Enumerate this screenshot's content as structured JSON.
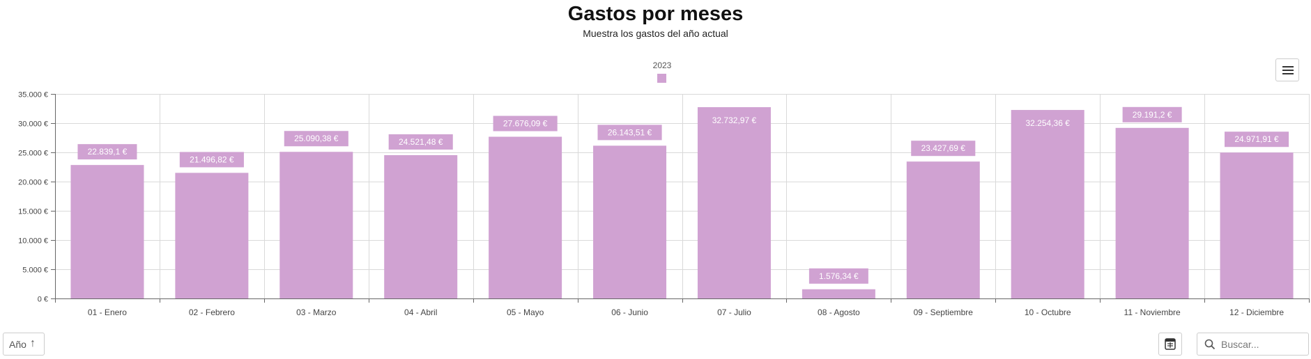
{
  "header": {
    "title": "Gastos por meses",
    "subtitle": "Muestra los gastos del año actual"
  },
  "toolbar": {
    "sort_label": "Año",
    "sort_arrow": "↑",
    "search_placeholder": "Buscar...",
    "menu_icon": "hamburger-menu-icon",
    "export_icon": "export-excel-icon",
    "search_icon": "search-icon"
  },
  "colors": {
    "bar": "#d0a2d2",
    "grid": "#d9d9d9",
    "axis": "#666666"
  },
  "chart_data": {
    "type": "bar",
    "title": "Gastos por meses",
    "subtitle": "Muestra los gastos del año actual",
    "categories": [
      "01 - Enero",
      "02 - Febrero",
      "03 - Marzo",
      "04 - Abril",
      "05 - Mayo",
      "06 - Junio",
      "07 - Julio",
      "08 - Agosto",
      "09 - Septiembre",
      "10 - Octubre",
      "11 - Noviembre",
      "12 - Diciembre"
    ],
    "series": [
      {
        "name": "2023",
        "values": [
          22839.1,
          21496.82,
          25090.38,
          24521.48,
          27676.09,
          26143.51,
          32732.97,
          1576.34,
          23427.69,
          32254.36,
          29191.2,
          24971.91
        ],
        "labels": [
          "22.839,1 €",
          "21.496,82 €",
          "25.090,38 €",
          "24.521,48 €",
          "27.676,09 €",
          "26.143,51 €",
          "32.732,97 €",
          "1.576,34 €",
          "23.427,69 €",
          "32.254,36 €",
          "29.191,2 €",
          "24.971,91 €"
        ]
      }
    ],
    "ylim": [
      0,
      35000
    ],
    "yticks": [
      0,
      5000,
      10000,
      15000,
      20000,
      25000,
      30000,
      35000
    ],
    "ytick_labels": [
      "0 €",
      "5.000 €",
      "10.000 €",
      "15.000 €",
      "20.000 €",
      "25.000 €",
      "30.000 €",
      "35.000 €"
    ],
    "xlabel": "",
    "ylabel": "",
    "grid": true,
    "legend": "top-center"
  }
}
